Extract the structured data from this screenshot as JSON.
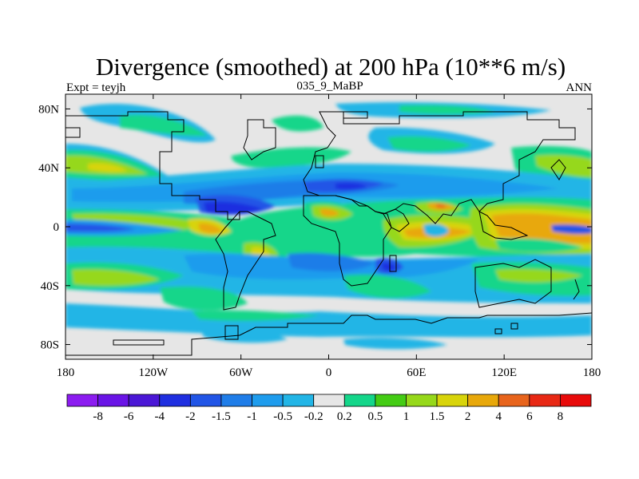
{
  "chart_data": {
    "type": "heatmap",
    "title": "Divergence (smoothed) at 200 hPa (10**6 m/s)",
    "left_label": "Expt = teyjh",
    "center_label": "035_9_MaBP",
    "right_label": "ANN",
    "x_ticks": [
      "180",
      "120W",
      "60W",
      "0",
      "60E",
      "120E",
      "180"
    ],
    "x_values": [
      -180,
      -120,
      -60,
      0,
      60,
      120,
      180
    ],
    "y_ticks": [
      "80N",
      "40N",
      "0",
      "40S",
      "80S"
    ],
    "y_values": [
      80,
      40,
      0,
      -40,
      -80
    ],
    "xlim": [
      -180,
      180
    ],
    "ylim": [
      -90,
      90
    ],
    "colorbar_labels": [
      "-8",
      "-6",
      "-4",
      "-2",
      "-1.5",
      "-1",
      "-0.5",
      "-0.2",
      "0.2",
      "0.5",
      "1",
      "1.5",
      "2",
      "4",
      "6",
      "8"
    ],
    "colorbar_levels": [
      -8,
      -6,
      -4,
      -2,
      -1.5,
      -1,
      -0.5,
      -0.2,
      0.2,
      0.5,
      1,
      1.5,
      2,
      4,
      6,
      8
    ],
    "colorbar_colors": [
      "#8c1cf0",
      "#6a14e6",
      "#4b17d6",
      "#1f2fe0",
      "#2155e6",
      "#1f7de8",
      "#1e9ced",
      "#22b5e6",
      "#e6e6e6",
      "#14d68a",
      "#44cc14",
      "#96d81a",
      "#d8d40a",
      "#e8a80a",
      "#e8641c",
      "#e82814",
      "#e80a0a"
    ]
  }
}
